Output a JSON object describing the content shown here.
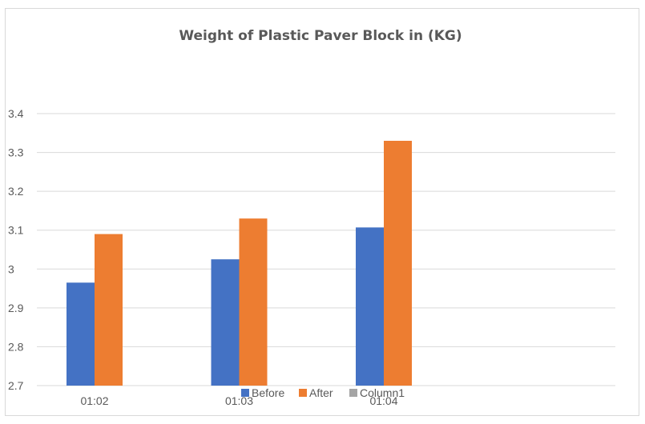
{
  "chart_data": {
    "type": "bar",
    "title": "Weight of Plastic Paver Block in (KG)",
    "xlabel": "",
    "ylabel": "",
    "categories": [
      "01:02",
      "01:03",
      "01:04"
    ],
    "series": [
      {
        "name": "Before",
        "color": "#4472c4",
        "values": [
          2.965,
          3.025,
          3.107
        ]
      },
      {
        "name": "After",
        "color": "#ed7d31",
        "values": [
          3.09,
          3.13,
          3.33
        ]
      },
      {
        "name": "Column1",
        "color": "#a5a5a5",
        "values": [
          null,
          null,
          null
        ]
      }
    ],
    "ylim": [
      2.7,
      3.4
    ],
    "yticks": [
      "2.7",
      "2.8",
      "2.9",
      "3",
      "3.1",
      "3.2",
      "3.3",
      "3.4"
    ],
    "grid": true,
    "legend_position": "bottom"
  }
}
